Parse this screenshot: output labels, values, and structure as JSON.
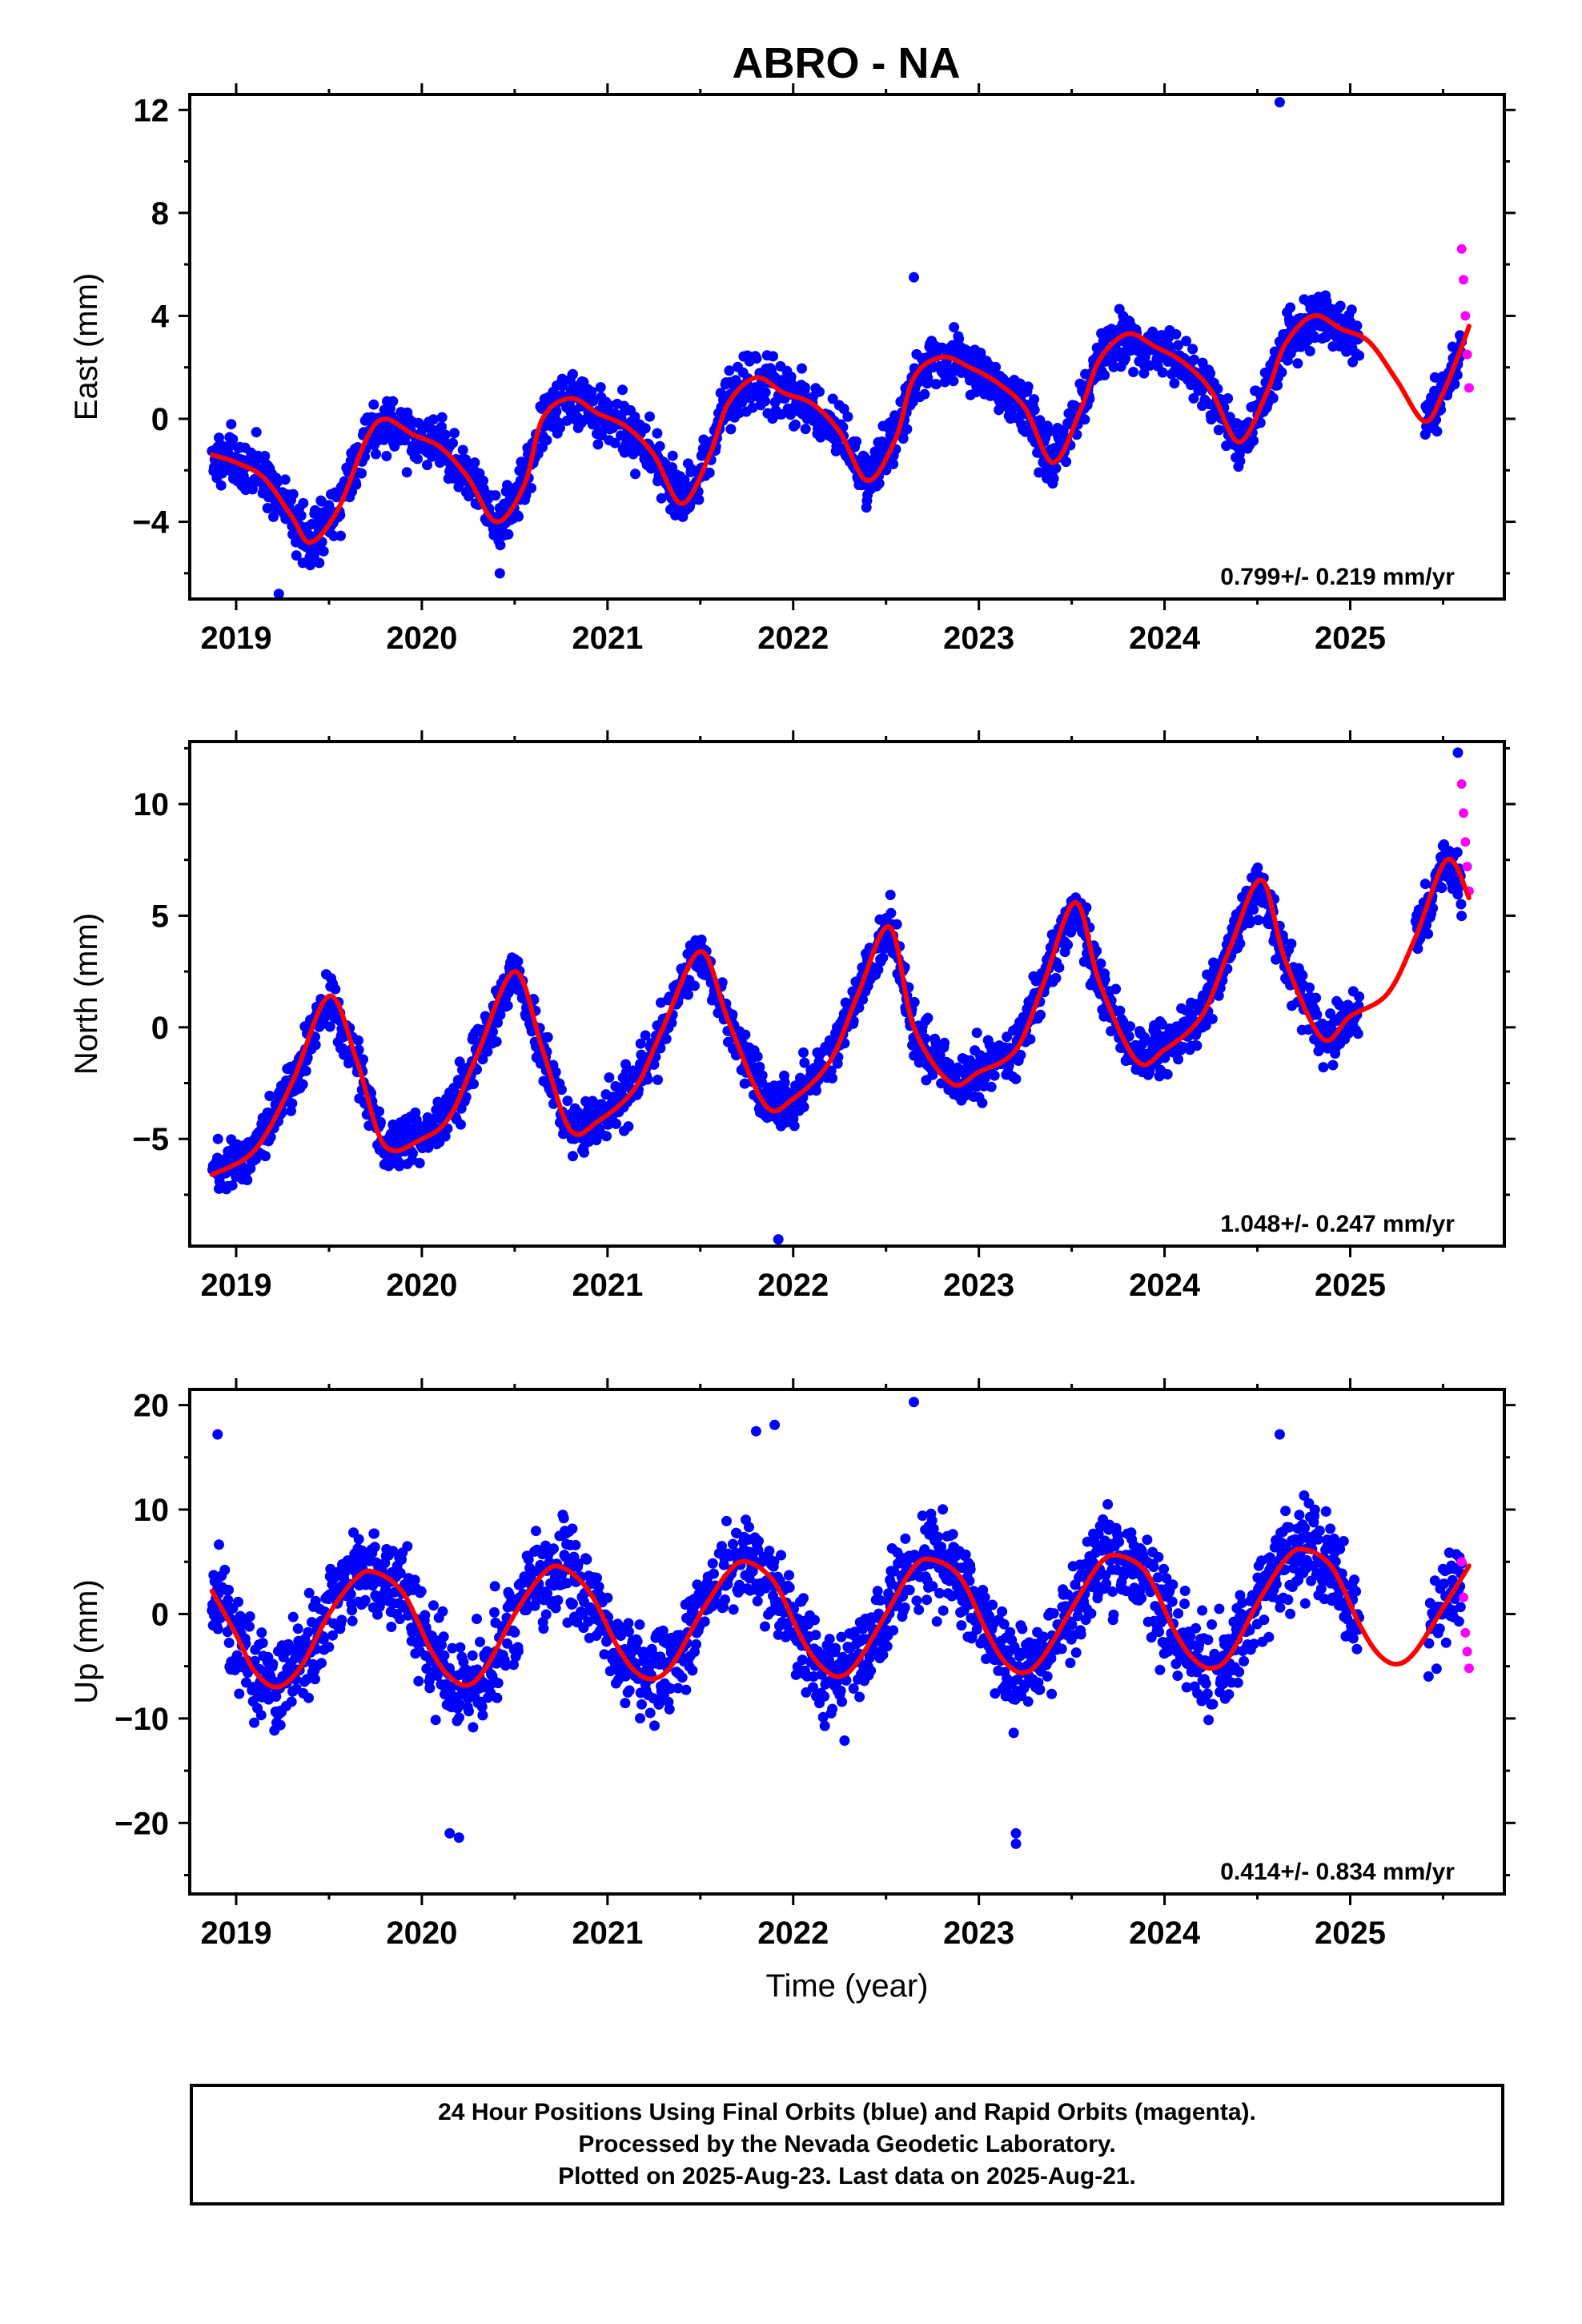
{
  "title": "ABRO - NA",
  "colors": {
    "final": "#0000ff",
    "rapid": "#ff00ff",
    "model": "#ff0000",
    "frame": "#000000"
  },
  "chart_data": [
    {
      "type": "scatter",
      "name": "east",
      "ylabel": "East (mm)",
      "xlabel": "",
      "xlim": [
        2018.75,
        2025.83
      ],
      "ylim": [
        -7.0,
        12.6
      ],
      "yticks": [
        -4,
        0,
        4,
        8,
        12
      ],
      "xticks": [
        2019,
        2020,
        2021,
        2022,
        2023,
        2024,
        2025
      ],
      "rate": "0.799+/- 0.219 mm/yr",
      "model": {
        "x": [
          2018.87,
          2019.0,
          2019.15,
          2019.3,
          2019.4,
          2019.55,
          2019.7,
          2019.8,
          2019.95,
          2020.1,
          2020.25,
          2020.4,
          2020.55,
          2020.65,
          2020.8,
          2020.95,
          2021.1,
          2021.25,
          2021.4,
          2021.55,
          2021.65,
          2021.8,
          2021.95,
          2022.1,
          2022.25,
          2022.4,
          2022.55,
          2022.65,
          2022.8,
          2022.95,
          2023.1,
          2023.25,
          2023.4,
          2023.55,
          2023.65,
          2023.8,
          2023.95,
          2024.1,
          2024.25,
          2024.4,
          2024.55,
          2024.65,
          2024.8,
          2024.95,
          2025.1,
          2025.25,
          2025.4,
          2025.5,
          2025.6,
          2025.64
        ],
        "y": [
          -1.4,
          -1.7,
          -2.3,
          -3.8,
          -4.8,
          -3.5,
          -0.8,
          0.0,
          -0.6,
          -1.1,
          -2.3,
          -4.0,
          -2.6,
          0.0,
          0.8,
          0.2,
          -0.3,
          -1.4,
          -3.3,
          -1.4,
          0.6,
          1.6,
          1.0,
          0.6,
          -0.5,
          -2.4,
          -0.8,
          1.6,
          2.4,
          2.0,
          1.4,
          0.4,
          -1.7,
          0.4,
          2.3,
          3.3,
          2.8,
          2.2,
          1.1,
          -0.9,
          1.0,
          2.9,
          4.0,
          3.5,
          3.0,
          1.5,
          -0.1,
          1.0,
          2.8,
          3.6
        ]
      },
      "band": {
        "x": [
          2018.87,
          2019.0,
          2019.15,
          2019.3,
          2019.4,
          2019.55,
          2019.7,
          2019.8,
          2019.95,
          2020.1,
          2020.25,
          2020.4,
          2020.55,
          2020.65,
          2020.8,
          2020.95,
          2021.1,
          2021.25,
          2021.4,
          2021.55,
          2021.65,
          2021.8,
          2021.95,
          2022.1,
          2022.25,
          2022.4,
          2022.55,
          2022.65,
          2022.8,
          2022.95,
          2023.1,
          2023.25,
          2023.4,
          2023.55,
          2023.65,
          2023.8,
          2023.95,
          2024.1,
          2024.25,
          2024.4,
          2024.55,
          2024.65,
          2024.8,
          2024.95,
          2025.05,
          2025.4,
          2025.5,
          2025.6
        ],
        "half_width": 1.3
      },
      "outliers": {
        "x": [
          2019.23,
          2020.42,
          2022.65,
          2024.62
        ],
        "y": [
          -6.8,
          -6.0,
          5.5,
          12.3
        ]
      },
      "rapid": {
        "x": [
          2025.6,
          2025.61,
          2025.62,
          2025.63,
          2025.64
        ],
        "y": [
          6.6,
          5.4,
          4.0,
          2.5,
          1.2
        ]
      }
    },
    {
      "type": "scatter",
      "name": "north",
      "ylabel": "North (mm)",
      "xlabel": "",
      "xlim": [
        2018.75,
        2025.83
      ],
      "ylim": [
        -9.8,
        12.8
      ],
      "yticks": [
        -5,
        0,
        5,
        10
      ],
      "xticks": [
        2019,
        2020,
        2021,
        2022,
        2023,
        2024,
        2025
      ],
      "rate": "1.048+/- 0.247 mm/yr",
      "model": {
        "x": [
          2018.87,
          2019.1,
          2019.3,
          2019.5,
          2019.65,
          2019.8,
          2020.0,
          2020.15,
          2020.3,
          2020.5,
          2020.65,
          2020.8,
          2020.95,
          2021.15,
          2021.3,
          2021.5,
          2021.65,
          2021.85,
          2022.0,
          2022.2,
          2022.35,
          2022.52,
          2022.65,
          2022.85,
          2023.0,
          2023.2,
          2023.35,
          2023.52,
          2023.65,
          2023.85,
          2024.0,
          2024.2,
          2024.35,
          2024.52,
          2024.65,
          2024.85,
          2025.0,
          2025.2,
          2025.35,
          2025.52,
          2025.64
        ],
        "y": [
          -6.6,
          -5.5,
          -2.5,
          1.4,
          -1.5,
          -5.3,
          -5.0,
          -4.0,
          -1.2,
          2.5,
          -1.0,
          -4.6,
          -4.2,
          -2.7,
          0.0,
          3.4,
          0.3,
          -3.5,
          -3.2,
          -1.5,
          1.5,
          4.5,
          0.0,
          -2.5,
          -2.0,
          -1.0,
          2.0,
          5.6,
          2.0,
          -1.5,
          -1.0,
          0.5,
          3.5,
          6.6,
          3.0,
          -0.5,
          0.5,
          1.5,
          4.0,
          7.5,
          5.8
        ]
      },
      "band": {
        "x": [
          2018.87,
          2019.1,
          2019.3,
          2019.5,
          2019.65,
          2019.8,
          2020.0,
          2020.15,
          2020.3,
          2020.5,
          2020.65,
          2020.8,
          2020.95,
          2021.15,
          2021.3,
          2021.5,
          2021.65,
          2021.85,
          2022.0,
          2022.2,
          2022.35,
          2022.52,
          2022.72,
          2022.85,
          2023.0,
          2023.2,
          2023.35,
          2023.52,
          2023.65,
          2023.85,
          2024.0,
          2024.2,
          2024.35,
          2024.52,
          2024.65,
          2024.85,
          2025.05,
          2025.35,
          2025.45,
          2025.6
        ],
        "half_width": 1.5
      },
      "outliers": {
        "x": [
          2021.92,
          2025.58
        ],
        "y": [
          -9.5,
          12.3
        ]
      },
      "rapid": {
        "x": [
          2025.6,
          2025.61,
          2025.62,
          2025.63,
          2025.64
        ],
        "y": [
          10.9,
          9.6,
          8.3,
          7.2,
          6.1
        ]
      }
    },
    {
      "type": "scatter",
      "name": "up",
      "ylabel": "Up (mm)",
      "xlabel": "Time (year)",
      "xlim": [
        2018.75,
        2025.83
      ],
      "ylim": [
        -26.8,
        21.5
      ],
      "yticks": [
        -20,
        -10,
        0,
        10,
        20
      ],
      "xticks": [
        2019,
        2020,
        2021,
        2022,
        2023,
        2024,
        2025
      ],
      "rate": "0.414+/- 0.834 mm/yr",
      "model": {
        "x": [
          2018.87,
          2019.0,
          2019.1,
          2019.22,
          2019.35,
          2019.5,
          2019.65,
          2019.75,
          2019.9,
          2020.05,
          2020.15,
          2020.25,
          2020.35,
          2020.5,
          2020.65,
          2020.75,
          2020.9,
          2021.05,
          2021.15,
          2021.25,
          2021.35,
          2021.5,
          2021.65,
          2021.75,
          2021.9,
          2022.05,
          2022.15,
          2022.25,
          2022.35,
          2022.5,
          2022.65,
          2022.75,
          2022.9,
          2023.05,
          2023.15,
          2023.25,
          2023.35,
          2023.5,
          2023.65,
          2023.75,
          2023.9,
          2024.05,
          2024.15,
          2024.25,
          2024.35,
          2024.5,
          2024.65,
          2024.75,
          2024.9,
          2025.05,
          2025.15,
          2025.25,
          2025.35,
          2025.5,
          2025.64
        ],
        "y": [
          2.2,
          -2.0,
          -5.5,
          -7.0,
          -5.0,
          0.0,
          3.5,
          4.0,
          2.0,
          -3.5,
          -6.0,
          -6.8,
          -5.0,
          0.0,
          3.8,
          4.5,
          2.2,
          -3.0,
          -5.5,
          -6.2,
          -4.8,
          0.0,
          4.0,
          5.0,
          3.0,
          -2.5,
          -5.0,
          -6.0,
          -4.5,
          0.0,
          4.5,
          5.2,
          3.5,
          -2.0,
          -4.8,
          -5.6,
          -4.0,
          0.5,
          4.8,
          5.6,
          4.0,
          -1.5,
          -4.2,
          -5.2,
          -4.0,
          1.0,
          5.2,
          6.2,
          4.5,
          -1.0,
          -3.8,
          -4.8,
          -3.6,
          0.6,
          4.6
        ]
      },
      "band": {
        "x": [
          2018.87,
          2019.0,
          2019.1,
          2019.22,
          2019.35,
          2019.5,
          2019.65,
          2019.75,
          2019.9,
          2020.05,
          2020.15,
          2020.25,
          2020.35,
          2020.5,
          2020.65,
          2020.75,
          2020.9,
          2021.05,
          2021.15,
          2021.25,
          2021.35,
          2021.5,
          2021.65,
          2021.75,
          2021.9,
          2022.05,
          2022.15,
          2022.25,
          2022.35,
          2022.5,
          2022.65,
          2022.75,
          2022.9,
          2023.05,
          2023.15,
          2023.25,
          2023.35,
          2023.5,
          2023.65,
          2023.75,
          2023.9,
          2024.05,
          2024.15,
          2024.25,
          2024.35,
          2024.5,
          2024.65,
          2024.75,
          2024.9,
          2025.05,
          2025.42,
          2025.5,
          2025.6
        ],
        "half_width": 5.5
      },
      "outliers": {
        "x": [
          2018.9,
          2020.15,
          2020.2,
          2022.65,
          2023.2,
          2023.2,
          2021.8,
          2021.9,
          2024.62
        ],
        "y": [
          17.2,
          -21.0,
          -21.4,
          20.3,
          -21.0,
          -22.0,
          17.5,
          18.1,
          17.2
        ]
      },
      "rapid": {
        "x": [
          2025.6,
          2025.61,
          2025.62,
          2025.63,
          2025.64
        ],
        "y": [
          5.0,
          1.6,
          -1.8,
          -3.6,
          -5.2
        ]
      }
    }
  ],
  "footer": {
    "line1": "24 Hour Positions Using Final Orbits (blue) and Rapid Orbits (magenta).",
    "line2": "Processed by the Nevada Geodetic Laboratory.",
    "line3": "Plotted on 2025-Aug-23. Last data on 2025-Aug-21."
  }
}
